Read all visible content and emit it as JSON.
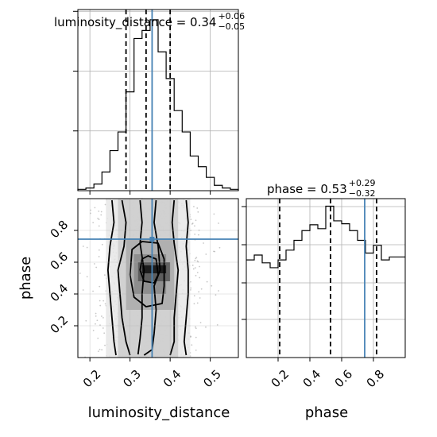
{
  "chart_data": {
    "type": "corner",
    "truth_color": "#4682b4",
    "params": {
      "x": {
        "name": "luminosity_distance",
        "range": [
          0.17,
          0.57
        ],
        "ticks": [
          0.2,
          0.3,
          0.4,
          0.5
        ],
        "tick_labels": [
          "0.2",
          "0.3",
          "0.4",
          "0.5"
        ],
        "median": 0.34,
        "quantiles": [
          0.29,
          0.34,
          0.4
        ],
        "truth": 0.355,
        "title_main": "luminosity_distance = 0.34",
        "title_plus": "+0.06",
        "title_minus": "−0.05"
      },
      "y": {
        "name": "phase",
        "range": [
          0.0,
          1.0
        ],
        "ticks": [
          0.2,
          0.4,
          0.6,
          0.8
        ],
        "tick_labels": [
          "0.2",
          "0.4",
          "0.6",
          "0.8"
        ],
        "median": 0.53,
        "quantiles": [
          0.21,
          0.53,
          0.82
        ],
        "truth": 0.745,
        "title_main": "phase = 0.53",
        "title_plus": "+0.29",
        "title_minus": "−0.32"
      }
    },
    "hist_x": {
      "bin_edges": [
        0.17,
        0.19,
        0.21,
        0.23,
        0.25,
        0.27,
        0.29,
        0.31,
        0.33,
        0.35,
        0.37,
        0.39,
        0.41,
        0.43,
        0.45,
        0.47,
        0.49,
        0.51,
        0.53,
        0.55,
        0.57
      ],
      "counts": [
        0.5,
        1.0,
        2.5,
        7,
        15,
        22,
        37,
        57,
        60,
        64,
        52,
        42,
        30,
        22,
        13,
        9,
        5,
        2,
        1,
        0.5
      ]
    },
    "hist_y": {
      "bin_edges": [
        0.0,
        0.05,
        0.1,
        0.15,
        0.2,
        0.25,
        0.3,
        0.35,
        0.4,
        0.45,
        0.5,
        0.55,
        0.6,
        0.65,
        0.7,
        0.75,
        0.8,
        0.85,
        0.9,
        0.95,
        1.0
      ],
      "counts": [
        1.0,
        1.05,
        0.97,
        0.92,
        1.0,
        1.1,
        1.2,
        1.3,
        1.36,
        1.32,
        1.55,
        1.4,
        1.37,
        1.3,
        1.2,
        1.07,
        1.15,
        1.0,
        1.03,
        1.03
      ]
    },
    "contours": [
      [
        [
          0.335,
          0.015
        ],
        [
          0.355,
          0.05
        ],
        [
          0.36,
          0.15
        ],
        [
          0.365,
          0.3
        ],
        [
          0.36,
          0.45
        ],
        [
          0.375,
          0.55
        ],
        [
          0.37,
          0.7
        ],
        [
          0.36,
          0.85
        ],
        [
          0.365,
          0.99
        ]
      ],
      [
        [
          0.325,
          0.99
        ],
        [
          0.33,
          0.85
        ],
        [
          0.325,
          0.72
        ],
        [
          0.335,
          0.55
        ],
        [
          0.33,
          0.4
        ],
        [
          0.33,
          0.25
        ],
        [
          0.325,
          0.12
        ],
        [
          0.32,
          0.02
        ]
      ],
      [
        [
          0.3,
          0.015
        ],
        [
          0.29,
          0.1
        ],
        [
          0.28,
          0.25
        ],
        [
          0.275,
          0.4
        ],
        [
          0.27,
          0.55
        ],
        [
          0.285,
          0.7
        ],
        [
          0.29,
          0.85
        ],
        [
          0.28,
          0.99
        ]
      ],
      [
        [
          0.41,
          0.99
        ],
        [
          0.405,
          0.85
        ],
        [
          0.41,
          0.72
        ],
        [
          0.42,
          0.55
        ],
        [
          0.415,
          0.4
        ],
        [
          0.41,
          0.25
        ],
        [
          0.41,
          0.1
        ],
        [
          0.4,
          0.015
        ]
      ],
      [
        [
          0.255,
          0.99
        ],
        [
          0.26,
          0.85
        ],
        [
          0.25,
          0.7
        ],
        [
          0.245,
          0.55
        ],
        [
          0.25,
          0.4
        ],
        [
          0.255,
          0.25
        ],
        [
          0.26,
          0.1
        ],
        [
          0.265,
          0.015
        ]
      ],
      [
        [
          0.44,
          0.015
        ],
        [
          0.435,
          0.1
        ],
        [
          0.44,
          0.25
        ],
        [
          0.445,
          0.4
        ],
        [
          0.445,
          0.55
        ],
        [
          0.44,
          0.7
        ],
        [
          0.445,
          0.85
        ],
        [
          0.44,
          0.99
        ]
      ],
      [
        [
          0.3,
          0.52
        ],
        [
          0.31,
          0.38
        ],
        [
          0.34,
          0.32
        ],
        [
          0.38,
          0.34
        ],
        [
          0.385,
          0.45
        ],
        [
          0.385,
          0.62
        ],
        [
          0.37,
          0.72
        ],
        [
          0.33,
          0.73
        ],
        [
          0.305,
          0.68
        ],
        [
          0.3,
          0.52
        ]
      ],
      [
        [
          0.325,
          0.55
        ],
        [
          0.335,
          0.48
        ],
        [
          0.36,
          0.47
        ],
        [
          0.37,
          0.52
        ],
        [
          0.365,
          0.62
        ],
        [
          0.345,
          0.64
        ],
        [
          0.33,
          0.62
        ],
        [
          0.325,
          0.55
        ]
      ]
    ],
    "density_cells": [
      {
        "x": 0.33,
        "y": 0.53,
        "w": 0.06,
        "h": 0.05,
        "shade": "#111111"
      },
      {
        "x": 0.32,
        "y": 0.48,
        "w": 0.08,
        "h": 0.12,
        "shade": "#555555"
      },
      {
        "x": 0.31,
        "y": 0.4,
        "w": 0.08,
        "h": 0.25,
        "shade": "#888888"
      },
      {
        "x": 0.29,
        "y": 0.3,
        "w": 0.12,
        "h": 0.45,
        "shade": "#aaaaaa"
      },
      {
        "x": 0.27,
        "y": 0.0,
        "w": 0.15,
        "h": 1.0,
        "shade": "#cccccc"
      },
      {
        "x": 0.24,
        "y": 0.0,
        "w": 0.21,
        "h": 1.0,
        "shade": "#e6e6e6"
      }
    ],
    "scatter_seed": 7,
    "xlabel": "luminosity_distance",
    "ylabel": "phase",
    "grid": true
  }
}
